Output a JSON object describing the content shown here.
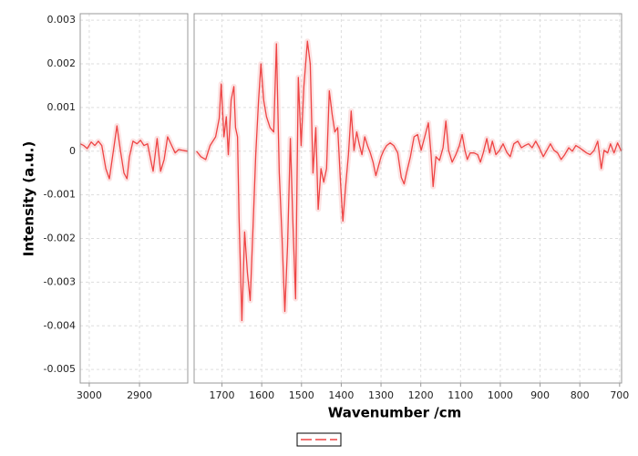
{
  "chart_data": {
    "type": "line",
    "xlabel": "Wavenumber /cm",
    "ylabel": "Intensity (a.u.)",
    "color": "#ee4444",
    "grid": true,
    "ylim": [
      -0.00531,
      0.00315
    ],
    "yticks": [
      0.003,
      0.002,
      0.001,
      0,
      -0.001,
      -0.002,
      -0.003,
      -0.004,
      -0.005
    ],
    "panels": [
      {
        "xlim": [
          3018,
          2804
        ],
        "xticks": [
          3000,
          2900
        ],
        "x": [
          3018,
          3011,
          3004,
          2996,
          2989,
          2982,
          2975,
          2967,
          2960,
          2953,
          2945,
          2938,
          2931,
          2925,
          2920,
          2913,
          2905,
          2898,
          2891,
          2884,
          2876,
          2873,
          2865,
          2858,
          2851,
          2844,
          2836,
          2829,
          2822,
          2815,
          2804
        ],
        "values": [
          0.00017,
          0.00013,
          6e-05,
          0.00021,
          0.00013,
          0.00023,
          0.00013,
          -0.0004,
          -0.00063,
          -8e-05,
          0.00058,
          2e-05,
          -0.0005,
          -0.00063,
          -0.00013,
          0.00023,
          0.00017,
          0.00025,
          0.00013,
          0.00017,
          -0.00029,
          -0.00046,
          0.00029,
          -0.00046,
          -0.00019,
          0.00033,
          0.00013,
          -4e-05,
          4e-05,
          2e-05,
          0
        ]
      },
      {
        "xlim": [
          1770,
          695
        ],
        "xticks": [
          1700,
          1600,
          1500,
          1400,
          1300,
          1200,
          1100,
          1000,
          900,
          800,
          700
        ],
        "x": [
          1764,
          1753,
          1741,
          1730,
          1716,
          1707,
          1702,
          1695,
          1689,
          1684,
          1677,
          1670,
          1666,
          1661,
          1657,
          1650,
          1643,
          1636,
          1629,
          1622,
          1615,
          1608,
          1602,
          1595,
          1588,
          1579,
          1570,
          1563,
          1556,
          1549,
          1542,
          1535,
          1528,
          1522,
          1515,
          1508,
          1501,
          1494,
          1485,
          1478,
          1471,
          1464,
          1458,
          1451,
          1444,
          1437,
          1430,
          1423,
          1416,
          1409,
          1402,
          1396,
          1389,
          1382,
          1375,
          1368,
          1361,
          1354,
          1348,
          1341,
          1334,
          1327,
          1320,
          1313,
          1306,
          1300,
          1293,
          1286,
          1277,
          1268,
          1258,
          1249,
          1242,
          1236,
          1226,
          1217,
          1208,
          1199,
          1190,
          1181,
          1174,
          1169,
          1162,
          1153,
          1144,
          1137,
          1130,
          1121,
          1112,
          1103,
          1096,
          1089,
          1083,
          1076,
          1066,
          1057,
          1050,
          1043,
          1034,
          1027,
          1020,
          1011,
          1002,
          993,
          984,
          975,
          966,
          956,
          947,
          938,
          929,
          920,
          911,
          901,
          892,
          883,
          874,
          865,
          856,
          847,
          838,
          828,
          819,
          810,
          801,
          792,
          783,
          774,
          764,
          755,
          746,
          739,
          730,
          723,
          714,
          705,
          696
        ],
        "values": [
          0,
          -0.000125,
          -0.00019,
          0.00013,
          0.00033,
          0.00075,
          0.00154,
          0.00033,
          0.00079,
          -8e-05,
          0.00117,
          0.00148,
          0.00054,
          0.00033,
          -0.00154,
          -0.00388,
          -0.00185,
          -0.00279,
          -0.00342,
          -0.00175,
          -8e-05,
          0.00117,
          0.002,
          0.00117,
          0.00079,
          0.00054,
          0.00044,
          0.00246,
          -0.0005,
          -0.00196,
          -0.00367,
          -0.00217,
          0.00029,
          -0.00154,
          -0.00338,
          0.00169,
          0.00013,
          0.00148,
          0.00252,
          0.002,
          -0.0005,
          0.00054,
          -0.00133,
          -0.0004,
          -0.00071,
          -0.0004,
          0.00138,
          0.00085,
          0.00044,
          0.00054,
          -0.00071,
          -0.0016,
          -0.00081,
          -8e-05,
          0.00092,
          2e-05,
          0.00044,
          0.00013,
          -8e-05,
          0.00033,
          0.00013,
          -4e-05,
          -0.00025,
          -0.00056,
          -0.00033,
          -0.000125,
          2e-05,
          0.00013,
          0.00019,
          0.00013,
          -4e-05,
          -0.0006,
          -0.00075,
          -0.0005,
          -0.000125,
          0.00033,
          0.00038,
          2e-05,
          0.00033,
          0.00065,
          -8e-05,
          -0.00081,
          -0.000125,
          -0.00021,
          8e-05,
          0.00069,
          2e-05,
          -0.00025,
          -8e-05,
          0.00013,
          0.00038,
          2e-05,
          -0.00019,
          -4e-05,
          -4e-05,
          -8e-05,
          -0.00025,
          -4e-05,
          0.00029,
          -4e-05,
          0.00023,
          -8e-05,
          2e-05,
          0.00017,
          -2e-05,
          -0.000125,
          0.00017,
          0.00023,
          8e-05,
          0.00013,
          0.00017,
          8e-05,
          0.00023,
          6e-05,
          -0.000125,
          2e-05,
          0.00017,
          2e-05,
          -4e-05,
          -0.00019,
          -8e-05,
          8e-05,
          0,
          0.00013,
          8e-05,
          2e-05,
          -4e-05,
          -8e-05,
          2e-05,
          0.00023,
          -0.0004,
          2e-05,
          -4e-05,
          0.00017,
          -4e-05,
          0.00019,
          0
        ]
      }
    ]
  }
}
